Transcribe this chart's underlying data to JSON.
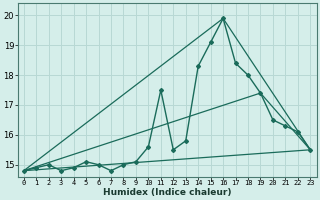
{
  "xlabel": "Humidex (Indice chaleur)",
  "background_color": "#d5eeea",
  "grid_color": "#b8d8d4",
  "line_color": "#1a6b5a",
  "xlim": [
    -0.5,
    23.5
  ],
  "ylim": [
    14.6,
    20.4
  ],
  "yticks": [
    15,
    16,
    17,
    18,
    19,
    20
  ],
  "xticks": [
    0,
    1,
    2,
    3,
    4,
    5,
    6,
    7,
    8,
    9,
    10,
    11,
    12,
    13,
    14,
    15,
    16,
    17,
    18,
    19,
    20,
    21,
    22,
    23
  ],
  "series1_x": [
    0,
    1,
    2,
    3,
    4,
    5,
    6,
    7,
    8,
    9,
    10,
    11,
    12,
    13,
    14,
    15,
    16,
    17,
    18,
    19,
    20,
    21,
    22,
    23
  ],
  "series1_y": [
    14.8,
    14.9,
    15.0,
    14.8,
    14.9,
    15.1,
    15.0,
    14.8,
    15.0,
    15.1,
    15.6,
    17.5,
    15.5,
    15.8,
    18.3,
    19.1,
    19.9,
    18.4,
    18.0,
    17.4,
    16.5,
    16.3,
    16.1,
    15.5
  ],
  "line1_x": [
    0,
    23
  ],
  "line1_y": [
    14.8,
    15.5
  ],
  "line2_x": [
    0,
    19,
    23
  ],
  "line2_y": [
    14.8,
    17.4,
    15.5
  ],
  "line3_x": [
    0,
    16,
    23
  ],
  "line3_y": [
    14.8,
    19.9,
    15.5
  ]
}
